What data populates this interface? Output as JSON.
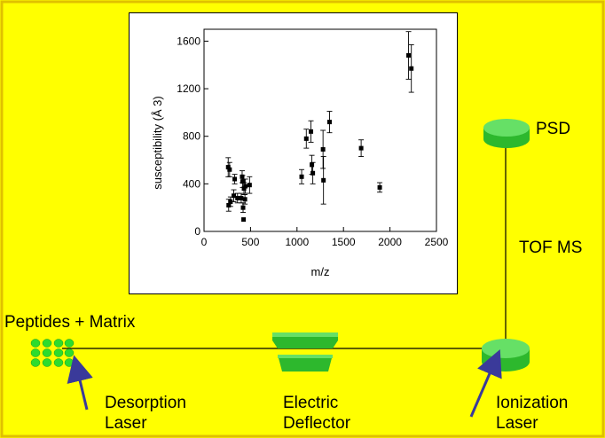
{
  "labels": {
    "peptides": "Peptides + Matrix",
    "desorption": [
      "Desorption",
      "Laser"
    ],
    "deflector": [
      "Electric",
      "Deflector"
    ],
    "ionization": [
      "Ionization",
      "Laser"
    ],
    "psd": "PSD",
    "tof": "TOF MS"
  },
  "colors": {
    "background": "#ffff00",
    "border": "#e0c000",
    "component_green": "#2db82d",
    "component_light": "#66e066",
    "arrow": "#3a3a9a"
  },
  "chart_data": {
    "type": "scatter",
    "xlabel": "m/z",
    "ylabel": "susceptibility (Å 3)",
    "xlim": [
      0,
      2500
    ],
    "ylim": [
      0,
      1700
    ],
    "xticks": [
      0,
      500,
      1000,
      1500,
      2000,
      2500
    ],
    "yticks": [
      0,
      400,
      800,
      1200,
      1600
    ],
    "grid": false,
    "points": [
      {
        "x": 260,
        "y": 540,
        "err": 80
      },
      {
        "x": 275,
        "y": 520,
        "err": 60
      },
      {
        "x": 265,
        "y": 220,
        "err": 50
      },
      {
        "x": 285,
        "y": 250,
        "err": 40
      },
      {
        "x": 320,
        "y": 300,
        "err": 50
      },
      {
        "x": 330,
        "y": 440,
        "err": 40
      },
      {
        "x": 360,
        "y": 280,
        "err": 40
      },
      {
        "x": 400,
        "y": 280,
        "err": 40
      },
      {
        "x": 410,
        "y": 460,
        "err": 50
      },
      {
        "x": 415,
        "y": 420,
        "err": 50
      },
      {
        "x": 420,
        "y": 200,
        "err": 40
      },
      {
        "x": 425,
        "y": 100,
        "err": 0
      },
      {
        "x": 430,
        "y": 360,
        "err": 50
      },
      {
        "x": 440,
        "y": 270,
        "err": 40
      },
      {
        "x": 445,
        "y": 380,
        "err": 60
      },
      {
        "x": 490,
        "y": 390,
        "err": 70
      },
      {
        "x": 1050,
        "y": 460,
        "err": 60
      },
      {
        "x": 1100,
        "y": 780,
        "err": 80
      },
      {
        "x": 1150,
        "y": 840,
        "err": 90
      },
      {
        "x": 1160,
        "y": 560,
        "err": 80
      },
      {
        "x": 1170,
        "y": 490,
        "err": 90
      },
      {
        "x": 1280,
        "y": 690,
        "err": 160
      },
      {
        "x": 1285,
        "y": 430,
        "err": 200
      },
      {
        "x": 1350,
        "y": 920,
        "err": 90
      },
      {
        "x": 1690,
        "y": 700,
        "err": 70
      },
      {
        "x": 1890,
        "y": 370,
        "err": 40
      },
      {
        "x": 2200,
        "y": 1480,
        "err": 200
      },
      {
        "x": 2230,
        "y": 1370,
        "err": 200
      }
    ]
  }
}
